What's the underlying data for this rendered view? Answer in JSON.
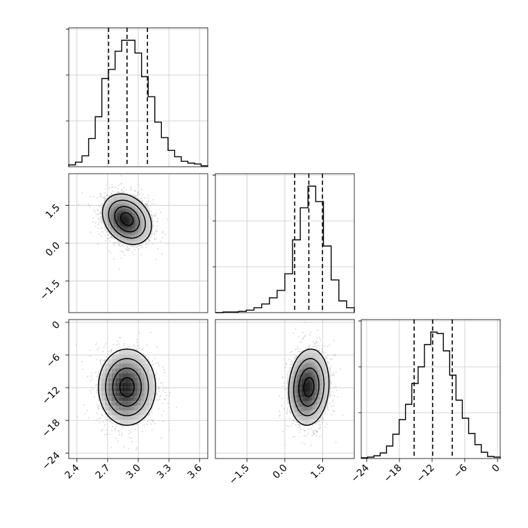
{
  "chart_data": {
    "type": "corner",
    "params": [
      {
        "ticks": [
          2.4,
          2.7,
          3.0,
          3.3,
          3.6
        ],
        "tick_labels": [
          "2.4",
          "2.7",
          "3.0",
          "3.3",
          "3.6"
        ],
        "range": [
          2.32,
          3.68
        ],
        "hist": {
          "counts": [
            2,
            5,
            12,
            31,
            55,
            97,
            107,
            127,
            139,
            139,
            125,
            99,
            77,
            49,
            32,
            18,
            11,
            6,
            4,
            3,
            1
          ],
          "quantiles": [
            2.71,
            2.89,
            3.09
          ]
        }
      },
      {
        "ticks": [
          -1.5,
          0.0,
          1.5
        ],
        "tick_labels": [
          "−1.5",
          "0.0",
          "1.5"
        ],
        "range": [
          -2.75,
          2.75
        ],
        "hist": {
          "counts": [
            0,
            1,
            1,
            2,
            4,
            8,
            14,
            24,
            36,
            63,
            118,
            170,
            205,
            180,
            108,
            53,
            19,
            8
          ],
          "quantiles": [
            0.39,
            0.95,
            1.49
          ]
        }
      },
      {
        "ticks": [
          -24,
          -18,
          -12,
          -6,
          0
        ],
        "tick_labels": [
          "−24",
          "−18",
          "−12",
          "−6",
          "0"
        ],
        "range": [
          -25.0,
          0.5
        ],
        "hist": {
          "counts": [
            1,
            2,
            4,
            8,
            18,
            35,
            56,
            78,
            108,
            132,
            164,
            182,
            180,
            155,
            120,
            84,
            58,
            36,
            20,
            9,
            3,
            2
          ],
          "quantiles": [
            -15.3,
            -11.9,
            -8.3
          ]
        }
      }
    ],
    "contours": {
      "levels": [
        0.5,
        1.0,
        1.5,
        2.0
      ],
      "pairs": [
        {
          "row": 1,
          "col": 0,
          "center": [
            2.89,
            0.95
          ],
          "sigma": [
            0.12,
            0.5
          ],
          "rho": -0.25,
          "points": 1400
        },
        {
          "row": 2,
          "col": 0,
          "center": [
            2.89,
            -11.9
          ],
          "sigma": [
            0.14,
            3.5
          ],
          "rho": 0.0,
          "points": 1400
        },
        {
          "row": 2,
          "col": 1,
          "center": [
            0.95,
            -11.9
          ],
          "sigma": [
            0.4,
            3.5
          ],
          "rho": 0.1,
          "points": 1400
        }
      ]
    },
    "grid": true,
    "line_color": "#000000",
    "point_color": "#bdbdbd"
  }
}
